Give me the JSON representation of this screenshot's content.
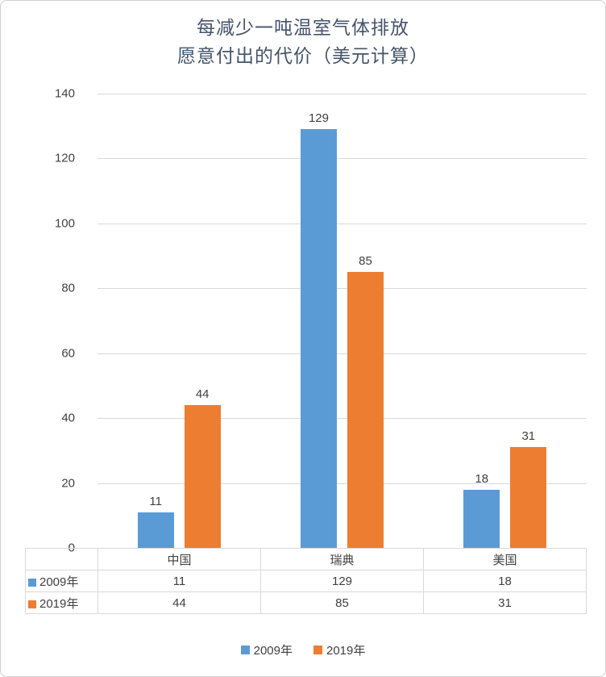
{
  "title": {
    "line1": "每减少一吨温室气体排放",
    "line2": "愿意付出的代价（美元计算）"
  },
  "colors": {
    "series_2009": "#5B9BD5",
    "series_2019": "#ED7D31",
    "gridline": "#D9D9D9",
    "axis_text": "#404040",
    "title_text": "#44546A"
  },
  "chart_data": {
    "type": "bar",
    "title": "每减少一吨温室气体排放 愿意付出的代价（美元计算）",
    "categories": [
      "中国",
      "瑞典",
      "美国"
    ],
    "series": [
      {
        "name": "2009年",
        "color": "#5B9BD5",
        "values": [
          11,
          129,
          18
        ]
      },
      {
        "name": "2019年",
        "color": "#ED7D31",
        "values": [
          44,
          85,
          31
        ]
      }
    ],
    "xlabel": "",
    "ylabel": "",
    "ylim": [
      0,
      140
    ],
    "yticks": [
      0,
      20,
      40,
      60,
      80,
      100,
      120,
      140
    ],
    "grid": true,
    "legend_position": "bottom",
    "data_table_shown": true
  },
  "legend": {
    "items": [
      {
        "label": "2009年",
        "color": "#5B9BD5"
      },
      {
        "label": "2019年",
        "color": "#ED7D31"
      }
    ]
  }
}
